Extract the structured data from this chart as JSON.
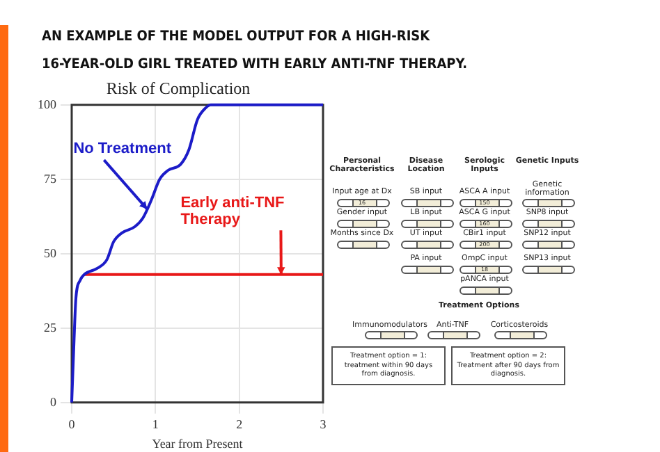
{
  "chart_data": [
    {
      "type": "line",
      "title": "Risk of Complication",
      "xlabel": "Year from Present",
      "xlim": [
        0,
        3
      ],
      "xticks": [
        0,
        1,
        2,
        3
      ],
      "ylim": [
        0,
        100
      ],
      "yticks": [
        0,
        25,
        50,
        75,
        100
      ],
      "grid": true,
      "legend": false,
      "marker": "none",
      "line_style": "solid",
      "series": [
        {
          "color": "#1c1cc8",
          "x": [
            0,
            0.02,
            0.05,
            0.1,
            0.15,
            0.3,
            0.42,
            0.5,
            0.6,
            0.75,
            0.85,
            0.95,
            1.05,
            1.15,
            1.3,
            1.4,
            1.5,
            1.6,
            1.66,
            3
          ],
          "values": [
            0,
            15,
            35,
            41,
            43,
            45,
            48,
            54,
            57,
            59,
            62,
            68,
            75,
            78,
            80,
            85,
            95,
            99,
            100,
            100
          ]
        },
        {
          "color": "#e81818",
          "x": [
            0.15,
            3
          ],
          "values": [
            43,
            43
          ]
        }
      ],
      "annotations": [
        "AN EXAMPLE OF THE MODEL OUTPUT FOR A HIGH-RISK\n16-YEAR-OLD GIRL TREATED WITH EARLY ANTI-TNF THERAPY.",
        {
          "text": "No Treatment",
          "x": 0.9,
          "y": 65
        },
        {
          "text": "Early anti-TNF Therapy",
          "x": 2.5,
          "y": 43
        }
      ]
    },
    {
      "type": "other",
      "annotations": [
        "Personal\nCharacteristics",
        "Disease\nLocation",
        "Serologic\nInputs",
        "Genetic Inputs",
        "Input age at Dx",
        "SB input",
        "ASCA A input",
        "Genetic\ninformation",
        "Gender input",
        "LB input",
        "ASCA G input",
        "SNP8 input",
        "Months since Dx",
        "UT input",
        "CBir1 input",
        "SNP12 input",
        "PA input",
        "OmpC input",
        "SNP13 input",
        "pANCA input",
        "16",
        "150",
        "160",
        "200",
        "18",
        "Treatment Options",
        "Immunomodulators",
        "Anti-TNF",
        "Corticosteroids",
        "Treatment option = 1:  treatment within\n90 days from diagnosis.",
        "Treatment option = 2:  Treatment after\n90 days from diagnosis."
      ]
    }
  ]
}
